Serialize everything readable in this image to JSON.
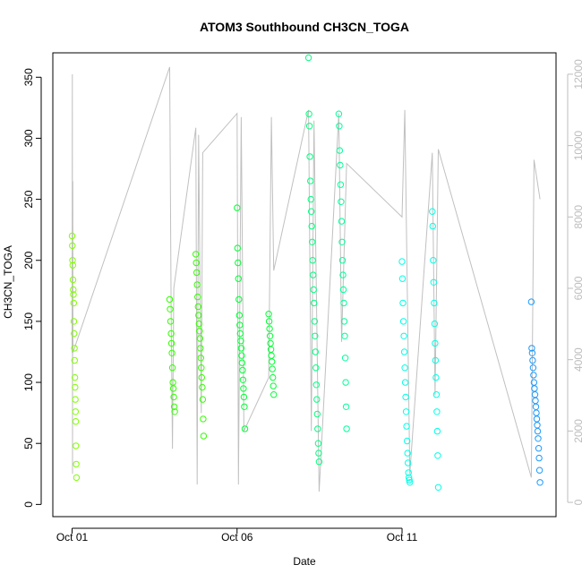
{
  "chart_data": {
    "type": "scatter",
    "title": "ATOM3 Southbound CH3CN_TOGA",
    "xlabel": "Date",
    "ylabel": "CH3CN_TOGA",
    "x_axis_type": "date",
    "xlim": [
      "2017-09-30T10:00",
      "2017-10-15T16:00"
    ],
    "ylim": [
      -10,
      370
    ],
    "y_ticks": [
      0,
      50,
      100,
      150,
      200,
      250,
      300,
      350
    ],
    "x_ticks": [
      "2017-10-01",
      "2017-10-06",
      "2017-10-11"
    ],
    "x_tick_labels": [
      "Oct 01",
      "Oct 06",
      "Oct 11"
    ],
    "right_axis": {
      "description": "secondary axis for grey altitude trace",
      "ylim": [
        -400,
        12600
      ],
      "ticks": [
        0,
        2000,
        4000,
        6000,
        8000,
        10000,
        12000
      ],
      "color": "#bdbdbd"
    },
    "marker": "open-circle",
    "color_scale_note": "point color follows date: green-yellow to blue",
    "series": [
      {
        "color": "#80ff00",
        "x": [
          "2017-10-01T00:00",
          "2017-10-01T00:10",
          "2017-10-01T00:20",
          "2017-10-01T00:30",
          "2017-10-01T00:40",
          "2017-10-01T00:50",
          "2017-10-01T01:00",
          "2017-10-01T01:10",
          "2017-10-01T01:20",
          "2017-10-01T01:30",
          "2017-10-01T01:40",
          "2017-10-01T01:50",
          "2017-10-01T02:00",
          "2017-10-01T02:10",
          "2017-10-01T02:20",
          "2017-10-01T02:30",
          "2017-10-01T02:40",
          "2017-10-01T02:50",
          "2017-10-01T03:00",
          "2017-10-01T03:10"
        ],
        "y": [
          220,
          212,
          200,
          196,
          184,
          176,
          172,
          165,
          150,
          140,
          128,
          118,
          104,
          96,
          86,
          76,
          68,
          48,
          33,
          22
        ]
      },
      {
        "color": "#33ff00",
        "x": [
          "2017-10-03T23:00",
          "2017-10-03T23:20",
          "2017-10-03T23:40",
          "2017-10-04T00:00",
          "2017-10-04T00:20",
          "2017-10-04T00:40",
          "2017-10-04T01:00",
          "2017-10-04T01:20",
          "2017-10-04T01:40",
          "2017-10-04T02:00",
          "2017-10-04T02:20",
          "2017-10-04T02:40",
          "2017-10-04T18:00",
          "2017-10-04T18:20",
          "2017-10-04T18:40",
          "2017-10-04T19:00",
          "2017-10-04T19:20",
          "2017-10-04T19:40",
          "2017-10-04T20:00",
          "2017-10-04T20:20",
          "2017-10-04T20:40",
          "2017-10-04T21:00",
          "2017-10-04T21:20",
          "2017-10-04T21:40",
          "2017-10-04T22:00",
          "2017-10-04T22:20",
          "2017-10-04T22:40",
          "2017-10-04T23:00",
          "2017-10-04T23:20",
          "2017-10-04T23:40"
        ],
        "y": [
          168,
          160,
          150,
          140,
          132,
          124,
          112,
          100,
          95,
          88,
          80,
          76,
          205,
          198,
          190,
          180,
          170,
          162,
          155,
          148,
          142,
          136,
          128,
          120,
          112,
          104,
          96,
          86,
          70,
          56
        ]
      },
      {
        "color": "#00ff33",
        "x": [
          "2017-10-06T00:00",
          "2017-10-06T00:20",
          "2017-10-06T00:40",
          "2017-10-06T01:00",
          "2017-10-06T01:20",
          "2017-10-06T01:40",
          "2017-10-06T02:00",
          "2017-10-06T02:20",
          "2017-10-06T02:40",
          "2017-10-06T03:00",
          "2017-10-06T03:20",
          "2017-10-06T03:40",
          "2017-10-06T04:00",
          "2017-10-06T04:20",
          "2017-10-06T04:40",
          "2017-10-06T05:00",
          "2017-10-06T05:20",
          "2017-10-06T05:40",
          "2017-10-06T23:00",
          "2017-10-06T23:20",
          "2017-10-06T23:40",
          "2017-10-07T00:00",
          "2017-10-07T00:20",
          "2017-10-07T00:40",
          "2017-10-07T01:00",
          "2017-10-07T01:20",
          "2017-10-07T01:40",
          "2017-10-07T02:00",
          "2017-10-07T02:20",
          "2017-10-07T02:40"
        ],
        "y": [
          243,
          210,
          198,
          185,
          168,
          155,
          147,
          140,
          134,
          128,
          122,
          116,
          110,
          102,
          95,
          88,
          80,
          62,
          156,
          150,
          144,
          138,
          132,
          127,
          122,
          117,
          111,
          104,
          97,
          90
        ]
      },
      {
        "color": "#00ff80",
        "x": [
          "2017-10-08T04:00",
          "2017-10-08T04:20",
          "2017-10-08T04:40",
          "2017-10-08T05:00",
          "2017-10-08T05:20",
          "2017-10-08T05:40",
          "2017-10-08T06:00",
          "2017-10-08T06:20",
          "2017-10-08T06:40",
          "2017-10-08T07:00",
          "2017-10-08T07:20",
          "2017-10-08T07:40",
          "2017-10-08T08:00",
          "2017-10-08T08:20",
          "2017-10-08T08:40",
          "2017-10-08T09:00",
          "2017-10-08T09:20",
          "2017-10-08T09:40",
          "2017-10-08T10:00",
          "2017-10-08T10:20",
          "2017-10-08T10:40",
          "2017-10-08T11:00",
          "2017-10-08T11:20",
          "2017-10-08T11:40"
        ],
        "y": [
          366,
          320,
          310,
          285,
          265,
          250,
          240,
          228,
          215,
          200,
          188,
          176,
          165,
          150,
          138,
          125,
          112,
          98,
          86,
          74,
          62,
          50,
          42,
          35
        ]
      },
      {
        "color": "#00ff99",
        "x": [
          "2017-10-09T02:00",
          "2017-10-09T02:20",
          "2017-10-09T02:40",
          "2017-10-09T03:00",
          "2017-10-09T03:20",
          "2017-10-09T03:40",
          "2017-10-09T04:00",
          "2017-10-09T04:20",
          "2017-10-09T04:40",
          "2017-10-09T05:00",
          "2017-10-09T05:20",
          "2017-10-09T05:40",
          "2017-10-09T06:00",
          "2017-10-09T06:20",
          "2017-10-09T06:40",
          "2017-10-09T07:00",
          "2017-10-09T07:20",
          "2017-10-09T07:40"
        ],
        "y": [
          320,
          310,
          290,
          278,
          262,
          248,
          232,
          215,
          200,
          188,
          176,
          165,
          150,
          138,
          120,
          100,
          80,
          62
        ]
      },
      {
        "color": "#00ffe6",
        "x": [
          "2017-10-11T00:00",
          "2017-10-11T00:20",
          "2017-10-11T00:40",
          "2017-10-11T01:00",
          "2017-10-11T01:20",
          "2017-10-11T01:40",
          "2017-10-11T02:00",
          "2017-10-11T02:20",
          "2017-10-11T02:40",
          "2017-10-11T03:00",
          "2017-10-11T03:20",
          "2017-10-11T03:40",
          "2017-10-11T04:00",
          "2017-10-11T04:20",
          "2017-10-11T04:40",
          "2017-10-11T05:00",
          "2017-10-11T05:20",
          "2017-10-11T05:40",
          "2017-10-11T22:00",
          "2017-10-11T22:20",
          "2017-10-11T22:40",
          "2017-10-11T23:00",
          "2017-10-11T23:20",
          "2017-10-11T23:40",
          "2017-10-12T00:00",
          "2017-10-12T00:20",
          "2017-10-12T00:40",
          "2017-10-12T01:00",
          "2017-10-12T01:20",
          "2017-10-12T01:40",
          "2017-10-12T02:00",
          "2017-10-12T02:20"
        ],
        "y": [
          199,
          185,
          165,
          150,
          138,
          125,
          112,
          100,
          88,
          76,
          64,
          52,
          42,
          34,
          26,
          22,
          20,
          18,
          240,
          228,
          200,
          182,
          165,
          148,
          132,
          118,
          104,
          90,
          76,
          60,
          40,
          14
        ]
      },
      {
        "color": "#1a99ff",
        "x": [
          "2017-10-14T22:00",
          "2017-10-14T22:20",
          "2017-10-14T22:40",
          "2017-10-14T23:00",
          "2017-10-14T23:20",
          "2017-10-14T23:40",
          "2017-10-15T00:00",
          "2017-10-15T00:20",
          "2017-10-15T00:40",
          "2017-10-15T01:00",
          "2017-10-15T01:20",
          "2017-10-15T01:40",
          "2017-10-15T02:00",
          "2017-10-15T02:20",
          "2017-10-15T02:40",
          "2017-10-15T03:00",
          "2017-10-15T03:20",
          "2017-10-15T03:40",
          "2017-10-15T04:00",
          "2017-10-15T04:20"
        ],
        "y": [
          166,
          128,
          124,
          118,
          112,
          106,
          100,
          95,
          90,
          85,
          80,
          75,
          70,
          65,
          60,
          54,
          46,
          38,
          28,
          18
        ]
      }
    ],
    "altitude_trace": {
      "color": "#c0c0c0",
      "x": [
        "2017-10-01T00:00",
        "2017-10-01T00:10",
        "2017-10-01T00:20",
        "2017-10-01T00:30",
        "2017-10-01T00:40",
        "2017-10-03T23:00",
        "2017-10-04T00:00",
        "2017-10-04T01:00",
        "2017-10-04T02:00",
        "2017-10-04T18:00",
        "2017-10-04T19:00",
        "2017-10-04T20:00",
        "2017-10-04T22:00",
        "2017-10-04T23:00",
        "2017-10-06T00:00",
        "2017-10-06T01:00",
        "2017-10-06T03:00",
        "2017-10-06T05:00",
        "2017-10-06T23:00",
        "2017-10-07T01:00",
        "2017-10-07T02:40",
        "2017-10-08T04:00",
        "2017-10-08T06:00",
        "2017-10-08T08:00",
        "2017-10-08T11:40",
        "2017-10-09T02:00",
        "2017-10-09T04:00",
        "2017-10-09T07:40",
        "2017-10-11T00:00",
        "2017-10-11T02:00",
        "2017-10-11T05:40",
        "2017-10-11T22:00",
        "2017-10-12T00:00",
        "2017-10-12T02:20",
        "2017-10-14T22:00",
        "2017-10-15T00:00",
        "2017-10-15T04:20"
      ],
      "y": [
        4200,
        12000,
        800,
        9000,
        4200,
        12200,
        5500,
        1500,
        6000,
        10500,
        500,
        10300,
        2500,
        9800,
        10900,
        500,
        10800,
        2000,
        3500,
        10800,
        6500,
        11000,
        2000,
        10700,
        300,
        10900,
        4500,
        9500,
        8000,
        11000,
        800,
        9800,
        3000,
        9900,
        700,
        9600,
        8500
      ]
    }
  }
}
